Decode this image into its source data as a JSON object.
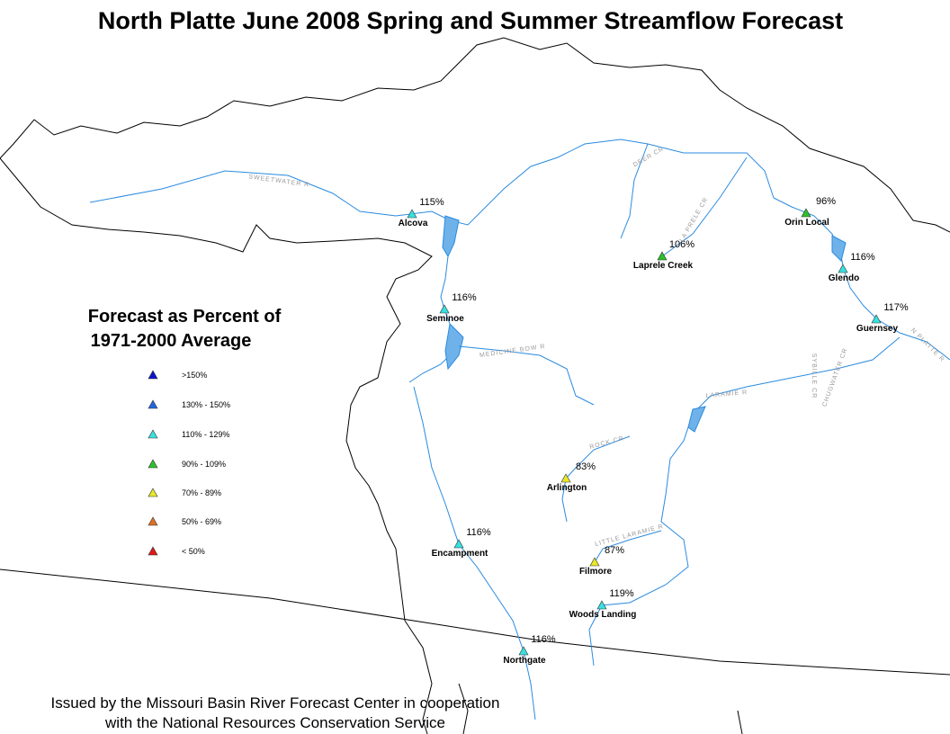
{
  "title": "North Platte June 2008 Spring and Summer Streamflow Forecast",
  "legend": {
    "title": [
      "Forecast as Percent of",
      "1971-2000 Average"
    ],
    "items": [
      {
        "label": ">150%",
        "color": "#0a14c8"
      },
      {
        "label": "130% - 150%",
        "color": "#2266e0"
      },
      {
        "label": "110% - 129%",
        "color": "#38e0e0"
      },
      {
        "label": "90% - 109%",
        "color": "#2cc02c"
      },
      {
        "label": "70% - 89%",
        "color": "#e8e82a"
      },
      {
        "label": "50% - 69%",
        "color": "#e07020"
      },
      {
        "label": "< 50%",
        "color": "#e01818"
      }
    ]
  },
  "stations": [
    {
      "name": "Alcova",
      "forecast": "115%",
      "color": "#38e0e0"
    },
    {
      "name": "Seminoe",
      "forecast": "116%",
      "color": "#38e0e0"
    },
    {
      "name": "Orin Local",
      "forecast": "96%",
      "color": "#2cc02c"
    },
    {
      "name": "Laprele Creek",
      "forecast": "106%",
      "color": "#2cc02c"
    },
    {
      "name": "Glendo",
      "forecast": "116%",
      "color": "#38e0e0"
    },
    {
      "name": "Guernsey",
      "forecast": "117%",
      "color": "#38e0e0"
    },
    {
      "name": "Arlington",
      "forecast": "83%",
      "color": "#e8e82a"
    },
    {
      "name": "Encampment",
      "forecast": "116%",
      "color": "#38e0e0"
    },
    {
      "name": "Filmore",
      "forecast": "87%",
      "color": "#e8e82a"
    },
    {
      "name": "Woods Landing",
      "forecast": "119%",
      "color": "#38e0e0"
    },
    {
      "name": "Northgate",
      "forecast": "116%",
      "color": "#38e0e0"
    }
  ],
  "river_labels": [
    "SWEETWATER R",
    "DEER CR",
    "LA PRELE CR",
    "MEDICINE BOW R",
    "LARAMIE R",
    "ROCK CR",
    "LITTLE LARAMIE R",
    "N PLATTE R",
    "SYBILLE CR",
    "CHUGWATER CR"
  ],
  "footer": [
    "Issued by the Missouri Basin River Forecast Center in cooperation",
    "with the National Resources Conservation Service"
  ]
}
